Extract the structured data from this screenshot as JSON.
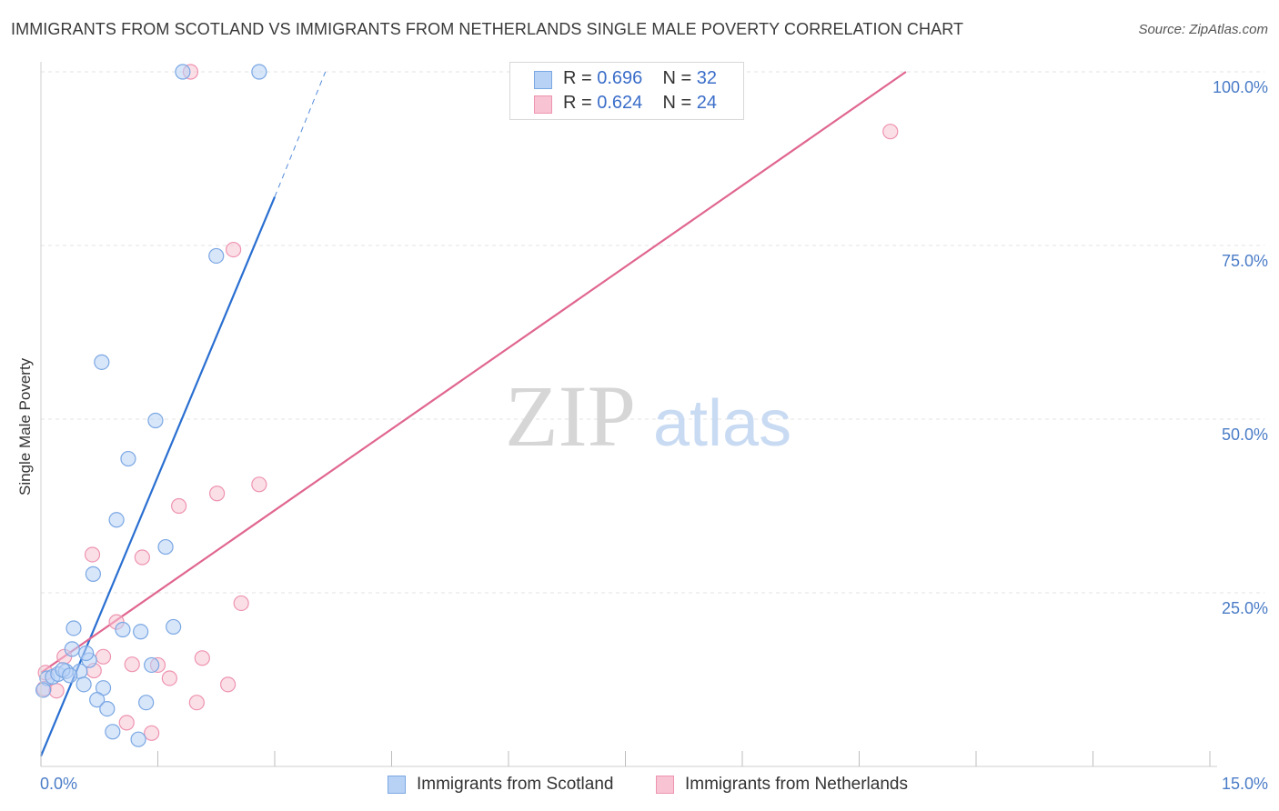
{
  "title": "IMMIGRANTS FROM SCOTLAND VS IMMIGRANTS FROM NETHERLANDS SINGLE MALE POVERTY CORRELATION CHART",
  "source": "Source: ZipAtlas.com",
  "watermark": {
    "zip": "ZIP",
    "atlas": "atlas"
  },
  "colors": {
    "scotland_fill": "#b8d2f5",
    "scotland_stroke": "#7aa7e3",
    "scotland_line": "#2a6fd1",
    "netherlands_fill": "#f8c4d4",
    "netherlands_stroke": "#ee93b0",
    "netherlands_line": "#e06690",
    "value_text": "#3b6ec9",
    "grid": "#e3e3e3"
  },
  "legend": {
    "rows": [
      {
        "r_label": "R = ",
        "r_value": "0.696",
        "n_label": "N = ",
        "n_value": "32"
      },
      {
        "r_label": "R = ",
        "r_value": "0.624",
        "n_label": "N = ",
        "n_value": "24"
      }
    ]
  },
  "chart_data": {
    "type": "scatter",
    "title": "IMMIGRANTS FROM SCOTLAND VS IMMIGRANTS FROM NETHERLANDS SINGLE MALE POVERTY CORRELATION CHART",
    "xlabel": "",
    "ylabel": "Single Male Poverty",
    "xlim": [
      0,
      15
    ],
    "ylim": [
      0,
      100
    ],
    "x_tick_labels": [
      "0.0%",
      "15.0%"
    ],
    "y_tick_labels": [
      "100.0%",
      "75.0%",
      "50.0%",
      "25.0%"
    ],
    "y_ticks": [
      100,
      75,
      50,
      25
    ],
    "x_ticks": [
      0,
      1.5,
      3.0,
      4.5,
      6.0,
      7.5,
      9.0,
      10.5,
      12.0,
      13.5,
      15.0
    ],
    "series": [
      {
        "name": "Immigrants from Scotland",
        "r": 0.696,
        "n": 32,
        "trend": {
          "x0": 0,
          "y0": 1.5,
          "x1": 3.0,
          "y1": 82,
          "dash_to_x": 3.65,
          "dash_to_y": 100
        },
        "points": [
          [
            1.82,
            100
          ],
          [
            2.8,
            100
          ],
          [
            2.25,
            73.5
          ],
          [
            0.78,
            58.2
          ],
          [
            1.47,
            49.8
          ],
          [
            1.12,
            44.3
          ],
          [
            0.97,
            35.5
          ],
          [
            1.6,
            31.6
          ],
          [
            0.67,
            27.7
          ],
          [
            0.42,
            19.9
          ],
          [
            1.05,
            19.7
          ],
          [
            1.28,
            19.4
          ],
          [
            1.7,
            20.1
          ],
          [
            0.4,
            16.9
          ],
          [
            0.62,
            15.3
          ],
          [
            0.58,
            16.3
          ],
          [
            1.42,
            14.6
          ],
          [
            0.5,
            13.7
          ],
          [
            0.08,
            12.7
          ],
          [
            0.15,
            12.9
          ],
          [
            0.22,
            13.3
          ],
          [
            0.32,
            13.7
          ],
          [
            0.28,
            13.9
          ],
          [
            0.37,
            13.1
          ],
          [
            0.55,
            11.8
          ],
          [
            0.8,
            11.3
          ],
          [
            0.03,
            11.0
          ],
          [
            0.72,
            9.6
          ],
          [
            1.35,
            9.2
          ],
          [
            0.85,
            8.3
          ],
          [
            0.92,
            5.0
          ],
          [
            1.25,
            3.9
          ]
        ]
      },
      {
        "name": "Immigrants from Netherlands",
        "r": 0.624,
        "n": 24,
        "trend": {
          "x0": 0,
          "y0": 13.5,
          "x1": 11.1,
          "y1": 100
        },
        "points": [
          [
            1.92,
            100
          ],
          [
            10.9,
            91.4
          ],
          [
            2.47,
            74.4
          ],
          [
            2.8,
            40.6
          ],
          [
            2.26,
            39.3
          ],
          [
            1.77,
            37.5
          ],
          [
            0.66,
            30.5
          ],
          [
            1.3,
            30.1
          ],
          [
            2.57,
            23.5
          ],
          [
            0.97,
            20.8
          ],
          [
            0.3,
            15.8
          ],
          [
            0.8,
            15.8
          ],
          [
            2.07,
            15.6
          ],
          [
            1.17,
            14.7
          ],
          [
            1.5,
            14.6
          ],
          [
            0.68,
            13.8
          ],
          [
            0.06,
            13.5
          ],
          [
            1.65,
            12.7
          ],
          [
            0.04,
            11.2
          ],
          [
            0.2,
            10.9
          ],
          [
            2.4,
            11.8
          ],
          [
            2.0,
            9.2
          ],
          [
            1.1,
            6.3
          ],
          [
            1.42,
            4.8
          ]
        ]
      }
    ]
  },
  "bottom_legend": [
    {
      "label": "Immigrants from Scotland"
    },
    {
      "label": "Immigrants from Netherlands"
    }
  ]
}
